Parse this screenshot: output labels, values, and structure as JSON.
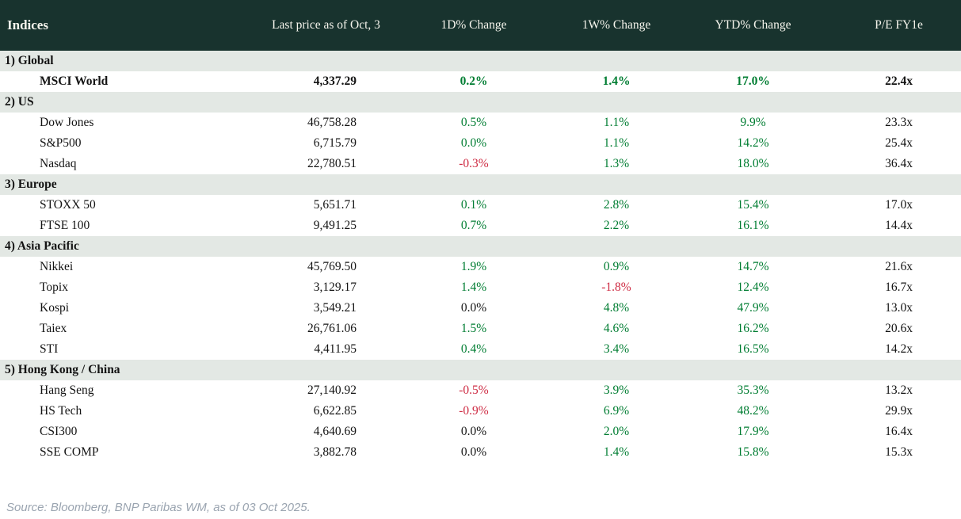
{
  "colors": {
    "header_bg": "#18332e",
    "header_text": "#f5f4ec",
    "section_bg": "#e3e8e4",
    "positive": "#007d32",
    "negative": "#ce2b43",
    "text": "#141414",
    "source_text": "#9aa4b0"
  },
  "chart_data": {
    "type": "table",
    "title": "Indices",
    "columns": [
      "Indices",
      "Last price as of Oct, 3",
      "1D% Change",
      "1W% Change",
      "YTD% Change",
      "P/E FY1e"
    ],
    "sections": [
      {
        "label": "1) Global",
        "rows": [
          {
            "name": "MSCI World",
            "last": "4,337.29",
            "d1": "0.2%",
            "d1_tone": "pos",
            "w1": "1.4%",
            "w1_tone": "pos",
            "ytd": "17.0%",
            "ytd_tone": "pos",
            "pe": "22.4x",
            "bold": true
          }
        ]
      },
      {
        "label": "2) US",
        "rows": [
          {
            "name": "Dow Jones",
            "last": "46,758.28",
            "d1": "0.5%",
            "d1_tone": "pos",
            "w1": "1.1%",
            "w1_tone": "pos",
            "ytd": "9.9%",
            "ytd_tone": "pos",
            "pe": "23.3x",
            "bold": false
          },
          {
            "name": "S&P500",
            "last": "6,715.79",
            "d1": "0.0%",
            "d1_tone": "pos",
            "w1": "1.1%",
            "w1_tone": "pos",
            "ytd": "14.2%",
            "ytd_tone": "pos",
            "pe": "25.4x",
            "bold": false
          },
          {
            "name": "Nasdaq",
            "last": "22,780.51",
            "d1": "-0.3%",
            "d1_tone": "neg",
            "w1": "1.3%",
            "w1_tone": "pos",
            "ytd": "18.0%",
            "ytd_tone": "pos",
            "pe": "36.4x",
            "bold": false
          }
        ]
      },
      {
        "label": "3) Europe",
        "rows": [
          {
            "name": "STOXX 50",
            "last": "5,651.71",
            "d1": "0.1%",
            "d1_tone": "pos",
            "w1": "2.8%",
            "w1_tone": "pos",
            "ytd": "15.4%",
            "ytd_tone": "pos",
            "pe": "17.0x",
            "bold": false
          },
          {
            "name": "FTSE 100",
            "last": "9,491.25",
            "d1": "0.7%",
            "d1_tone": "pos",
            "w1": "2.2%",
            "w1_tone": "pos",
            "ytd": "16.1%",
            "ytd_tone": "pos",
            "pe": "14.4x",
            "bold": false
          }
        ]
      },
      {
        "label": "4) Asia Pacific",
        "rows": [
          {
            "name": "Nikkei",
            "last": "45,769.50",
            "d1": "1.9%",
            "d1_tone": "pos",
            "w1": "0.9%",
            "w1_tone": "pos",
            "ytd": "14.7%",
            "ytd_tone": "pos",
            "pe": "21.6x",
            "bold": false
          },
          {
            "name": "Topix",
            "last": "3,129.17",
            "d1": "1.4%",
            "d1_tone": "pos",
            "w1": "-1.8%",
            "w1_tone": "neg",
            "ytd": "12.4%",
            "ytd_tone": "pos",
            "pe": "16.7x",
            "bold": false
          },
          {
            "name": "Kospi",
            "last": "3,549.21",
            "d1": "0.0%",
            "d1_tone": "flat",
            "w1": "4.8%",
            "w1_tone": "pos",
            "ytd": "47.9%",
            "ytd_tone": "pos",
            "pe": "13.0x",
            "bold": false
          },
          {
            "name": "Taiex",
            "last": "26,761.06",
            "d1": "1.5%",
            "d1_tone": "pos",
            "w1": "4.6%",
            "w1_tone": "pos",
            "ytd": "16.2%",
            "ytd_tone": "pos",
            "pe": "20.6x",
            "bold": false
          },
          {
            "name": "STI",
            "last": "4,411.95",
            "d1": "0.4%",
            "d1_tone": "pos",
            "w1": "3.4%",
            "w1_tone": "pos",
            "ytd": "16.5%",
            "ytd_tone": "pos",
            "pe": "14.2x",
            "bold": false
          }
        ]
      },
      {
        "label": "5) Hong Kong / China",
        "rows": [
          {
            "name": "Hang Seng",
            "last": "27,140.92",
            "d1": "-0.5%",
            "d1_tone": "neg",
            "w1": "3.9%",
            "w1_tone": "pos",
            "ytd": "35.3%",
            "ytd_tone": "pos",
            "pe": "13.2x",
            "bold": false
          },
          {
            "name": "HS Tech",
            "last": "6,622.85",
            "d1": "-0.9%",
            "d1_tone": "neg",
            "w1": "6.9%",
            "w1_tone": "pos",
            "ytd": "48.2%",
            "ytd_tone": "pos",
            "pe": "29.9x",
            "bold": false
          },
          {
            "name": "CSI300",
            "last": "4,640.69",
            "d1": "0.0%",
            "d1_tone": "flat",
            "w1": "2.0%",
            "w1_tone": "pos",
            "ytd": "17.9%",
            "ytd_tone": "pos",
            "pe": "16.4x",
            "bold": false
          },
          {
            "name": "SSE COMP",
            "last": "3,882.78",
            "d1": "0.0%",
            "d1_tone": "flat",
            "w1": "1.4%",
            "w1_tone": "pos",
            "ytd": "15.8%",
            "ytd_tone": "pos",
            "pe": "15.3x",
            "bold": false
          }
        ]
      }
    ],
    "footer_source": "Source: Bloomberg, BNP Paribas WM, as of 03 Oct 2025."
  }
}
